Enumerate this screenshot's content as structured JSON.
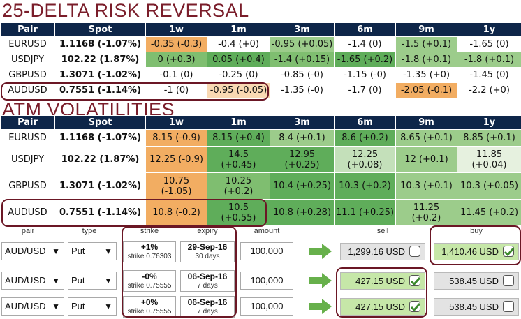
{
  "risk_reversal": {
    "title": "25-DELTA RISK REVERSAL",
    "headers": [
      "Pair",
      "Spot",
      "1w",
      "1m",
      "3m",
      "6m",
      "9m",
      "1y"
    ],
    "rows": [
      {
        "pair": "EURUSD",
        "spot": "1.1168 (-1.07%)",
        "cells": [
          "-0.35 (-0.3)",
          "-0.4 (+0)",
          "-0.95 (+0.05)",
          "-1.4 (0)",
          "-1.5 (+0.1)",
          "-1.65 (0)"
        ]
      },
      {
        "pair": "USDJPY",
        "spot": "102.22 (1.87%)",
        "cells": [
          "0 (+0.3)",
          "0.05 (+0.4)",
          "-1.4 (+0.15)",
          "-1.65 (+0.2)",
          "-1.8 (+0.1)",
          "-1.8 (+0.1)"
        ]
      },
      {
        "pair": "GBPUSD",
        "spot": "1.3071 (-1.02%)",
        "cells": [
          "-0.1 (0)",
          "-0.25 (0)",
          "-0.85 (-0)",
          "-1.15 (-0)",
          "-1.35 (+0)",
          "-1.45 (0)"
        ]
      },
      {
        "pair": "AUDUSD",
        "spot": "0.7551 (-1.14%)",
        "cells": [
          "-1 (0)",
          "-0.95 (-0.05)",
          "-1.35 (-0)",
          "-1.7 (0)",
          "-2.05 (-0.1)",
          "-2.2 (+0)"
        ]
      }
    ]
  },
  "atm_vol": {
    "title": "ATM VOLATILITIES",
    "headers": [
      "Pair",
      "Spot",
      "1w",
      "1m",
      "3m",
      "6m",
      "9m",
      "1y"
    ],
    "rows": [
      {
        "pair": "EURUSD",
        "spot": "1.1168 (-1.07%)",
        "cells": [
          "8.15 (-0.9)",
          "8.15 (+0.4)",
          "8.4 (+0.1)",
          "8.6 (+0.2)",
          "8.65 (+0.1)",
          "8.85 (+0.1)"
        ]
      },
      {
        "pair": "USDJPY",
        "spot": "102.22 (1.87%)",
        "cells": [
          "12.25 (-0.9)",
          "14.5\n(+0.45)",
          "12.95\n(+0.25)",
          "12.25\n(+0.08)",
          "12 (+0.1)",
          "11.85\n(+0.04)"
        ]
      },
      {
        "pair": "GBPUSD",
        "spot": "1.3071 (-1.02%)",
        "cells": [
          "10.75\n(-1.05)",
          "10.25\n(+0.2)",
          "10.4 (+0.25)",
          "10.3 (+0.2)",
          "10.3 (+0.1)",
          "10.3 (+0.05)"
        ]
      },
      {
        "pair": "AUDUSD",
        "spot": "0.7551 (-1.14%)",
        "cells": [
          "10.8 (-0.2)",
          "10.5\n(+0.55)",
          "10.8 (+0.28)",
          "11.1 (+0.25)",
          "11.25\n(+0.2)",
          "11.45 (+0.2)"
        ]
      }
    ]
  },
  "order_panel": {
    "headers": {
      "pair": "pair",
      "type": "type",
      "strike": "strike",
      "expiry": "expiry",
      "amount": "amount",
      "sell": "sell",
      "buy": "buy"
    },
    "rows": [
      {
        "pair": "AUD/USD",
        "type": "Put",
        "strike_main": "+1%",
        "strike_sub": "strike 0.76303",
        "expiry_date": "29-Sep-16",
        "expiry_days": "30 days",
        "amount": "100,000",
        "sell": "1,299.16 USD",
        "buy": "1,410.46 USD",
        "sell_checked": false,
        "buy_checked": true
      },
      {
        "pair": "AUD/USD",
        "type": "Put",
        "strike_main": "-0%",
        "strike_sub": "strike 0.75555",
        "expiry_date": "06-Sep-16",
        "expiry_days": "7 days",
        "amount": "100,000",
        "sell": "427.15 USD",
        "buy": "538.45 USD",
        "sell_checked": true,
        "buy_checked": false
      },
      {
        "pair": "AUD/USD",
        "type": "Put",
        "strike_main": "+0%",
        "strike_sub": "strike 0.75555",
        "expiry_date": "06-Sep-16",
        "expiry_days": "7 days",
        "amount": "100,000",
        "sell": "427.15 USD",
        "buy": "538.45 USD",
        "sell_checked": true,
        "buy_checked": false
      }
    ]
  },
  "colors": {
    "header_bg": "#0e2649",
    "title": "#7a1d2a",
    "highlight_ring": "#6b1725",
    "orange": "#f2ad62",
    "green": "#5fad5a",
    "checked_green": "#3c8a2c"
  }
}
